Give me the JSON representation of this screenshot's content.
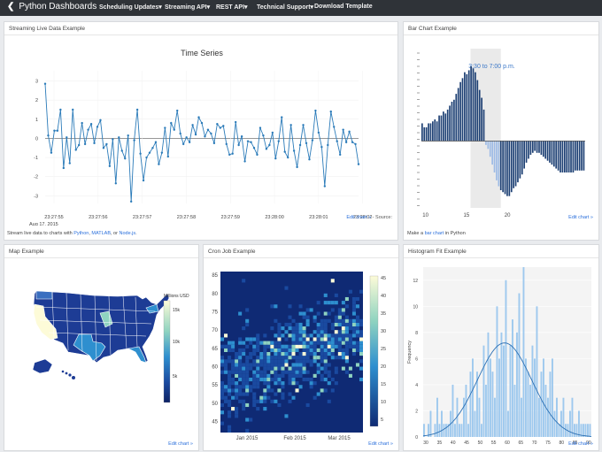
{
  "navbar": {
    "brand": "Python Dashboards",
    "items": [
      "Scheduling Updates",
      "Streaming API",
      "REST API",
      "Technical Support",
      "Download Template"
    ]
  },
  "panels": {
    "streaming": {
      "title": "Streaming Live Data Example",
      "edit_link": "Edit chart »",
      "source": "- Source:",
      "footer_prefix": "Stream live data to charts with ",
      "footer_links": [
        "Python",
        "MATLAB",
        "Node.js"
      ],
      "footer_sep": ", ",
      "footer_or": ", or ",
      "footer_end": "."
    },
    "bar": {
      "title": "Bar Chart Example",
      "edit_link": "Edit chart »",
      "footer_prefix": "Make a ",
      "footer_link": "bar chart",
      "footer_suffix": " in Python"
    },
    "map": {
      "title": "Map Example",
      "edit_link": "Edit chart »",
      "colorbar_title": "Millions USD",
      "colorbar_ticks": [
        "15k",
        "10k",
        "5k"
      ]
    },
    "cron": {
      "title": "Cron Job Example",
      "edit_link": "Edit chart »"
    },
    "histogram": {
      "title": "Histogram Fit Example",
      "edit_link": "Edit chart »"
    }
  },
  "chart_data": [
    {
      "type": "line",
      "title": "Time Series",
      "x_ticks": [
        "23:27:55",
        "23:27:56",
        "23:27:57",
        "23:27:58",
        "23:27:59",
        "23:28:00",
        "23:28:01",
        "23:28:02"
      ],
      "x_date_label": "Aug 17, 2015",
      "y_ticks": [
        3,
        2,
        1,
        0,
        -1,
        -2,
        -3
      ],
      "ylim": [
        -3.4,
        3.3
      ],
      "values": [
        2.85,
        0.15,
        -0.75,
        0.4,
        0.4,
        1.5,
        -1.55,
        0.05,
        -1.3,
        1.5,
        -0.6,
        -0.35,
        0.8,
        -0.3,
        0.45,
        0.75,
        -0.25,
        0.6,
        0.95,
        -0.5,
        -0.3,
        -1.45,
        -0.05,
        -2.35,
        0.05,
        -0.65,
        -1.05,
        0.15,
        -3.3,
        -0.1,
        1.5,
        -0.8,
        -2.2,
        -1.0,
        -0.75,
        -0.5,
        -0.2,
        -1.35,
        -0.75,
        0.55,
        -0.95,
        0.8,
        0.45,
        1.45,
        0.25,
        -0.3,
        0.05,
        -0.2,
        0.7,
        0.2,
        1.1,
        0.8,
        0.1,
        0.45,
        0.25,
        -0.25,
        0.75,
        0.55,
        0.65,
        -0.3,
        -0.85,
        -0.8,
        0.85,
        -0.35,
        0.1,
        -1.2,
        -0.15,
        -0.2,
        -0.5,
        -0.85,
        0.55,
        0.15,
        -0.55,
        -0.35,
        0.3,
        -1.05,
        -0.15,
        1.1,
        -0.7,
        -1.0,
        0.7,
        -0.65,
        -1.5,
        -0.35,
        0.7,
        -0.25,
        -1.1,
        -0.1,
        1.45,
        0.3,
        -0.45,
        -2.5,
        -0.35,
        1.4,
        0.6,
        -0.15,
        -0.85,
        0.45,
        -0.2,
        0.35,
        -0.2,
        -0.3,
        -1.35
      ]
    },
    {
      "type": "bar",
      "annotation": "3:30 to 7:00 p.m.",
      "x_ticks": [
        10,
        15,
        20
      ],
      "xlim": [
        9.5,
        29.5
      ],
      "highlight_range": [
        15.5,
        19.2
      ],
      "highlight_note": "3:30 to 7:00 p.m.",
      "ylim": [
        -0.34,
        0.47
      ],
      "values": [
        0.09,
        0.07,
        0.07,
        0.09,
        0.09,
        0.1,
        0.11,
        0.1,
        0.13,
        0.13,
        0.15,
        0.14,
        0.16,
        0.18,
        0.2,
        0.21,
        0.24,
        0.27,
        0.3,
        0.32,
        0.35,
        0.34,
        0.36,
        0.38,
        0.37,
        0.35,
        0.31,
        0.26,
        0.22,
        0.16,
        -0.02,
        -0.04,
        -0.08,
        -0.12,
        -0.16,
        -0.2,
        -0.23,
        -0.25,
        -0.26,
        -0.27,
        -0.28,
        -0.28,
        -0.26,
        -0.24,
        -0.23,
        -0.21,
        -0.19,
        -0.17,
        -0.14,
        -0.11,
        -0.09,
        -0.07,
        -0.06,
        -0.05,
        -0.06,
        -0.06,
        -0.07,
        -0.08,
        -0.09,
        -0.1,
        -0.11,
        -0.12,
        -0.13,
        -0.14,
        -0.15,
        -0.16,
        -0.16,
        -0.16,
        -0.16,
        -0.16,
        -0.16,
        -0.16,
        -0.15,
        -0.15,
        -0.15,
        -0.15,
        -0.15
      ],
      "colors": {
        "pos": "#1c3f73",
        "mid": "#9dbbe6",
        "neg": "#1c3f73",
        "highlight": "#eaeaea"
      }
    },
    {
      "type": "heatmap",
      "y_ticks": [
        85,
        80,
        75,
        70,
        65,
        60,
        55,
        50,
        45
      ],
      "ylim": [
        42,
        86
      ],
      "x_ticks": [
        "Jan 2015",
        "Feb 2015",
        "Mar 2015"
      ],
      "colorbar_ticks": [
        45,
        40,
        35,
        30,
        25,
        20,
        15,
        10,
        5
      ],
      "colors": {
        "background": "#0f2a74",
        "low": "#1a4aa0",
        "mid": "#2e8fcf",
        "high": "#8fd3c0",
        "max": "#fdfbd8"
      }
    },
    {
      "type": "bar",
      "title": "",
      "ylabel": "Frequency",
      "x_ticks": [
        30,
        35,
        40,
        45,
        50,
        55,
        60,
        65,
        70,
        75,
        80,
        85,
        90
      ],
      "xlim": [
        29,
        91
      ],
      "ylim": [
        0,
        13
      ],
      "y_ticks": [
        12,
        10,
        8,
        6,
        4,
        2,
        0
      ],
      "values": [
        1,
        0,
        1,
        2,
        0,
        1,
        3,
        1,
        2,
        1,
        1,
        1,
        2,
        4,
        1,
        3,
        1,
        1,
        3,
        4,
        1,
        5,
        6,
        2,
        5,
        3,
        1,
        7,
        4,
        8,
        6,
        5,
        3,
        10,
        6,
        8,
        7,
        12,
        2,
        7,
        9,
        4,
        8,
        11,
        3,
        13,
        6,
        5,
        4,
        7,
        6,
        10,
        3,
        5,
        6,
        4,
        3,
        5,
        6,
        2,
        3,
        1,
        2,
        3,
        1,
        1,
        2,
        3,
        1,
        1,
        2,
        1,
        1,
        1,
        1,
        1
      ],
      "fit_curve": {
        "mean": 59,
        "sd": 10,
        "peak": 7.2
      }
    }
  ]
}
